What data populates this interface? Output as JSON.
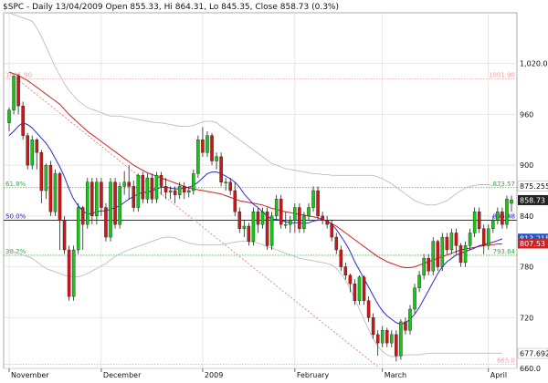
{
  "header": {
    "title": "$SPC - Daily 13/04/2009 Open 855.33, Hi 864.31, Lo 845.35, Close 858.73 (0.3%)"
  },
  "colors": {
    "up": "#16c716",
    "down": "#d11515",
    "wick": "#222222",
    "sma_short": "#2a2ad0",
    "sma_long": "#d42020",
    "bollinger": "#bdbdbd",
    "fib_green": "#2db82d",
    "fib_blue": "#2020c0",
    "fib_red": "#f2a0a0",
    "grid": "#dddddd",
    "axis_text": "#111111",
    "price_box": "#222222",
    "sma_box": "#2255cc",
    "sma_long_box": "#cc2222"
  },
  "chart_data": {
    "type": "candlestick",
    "title": "$SPC - Daily 13/04/2009 Open 855.33, Hi 864.31, Lo 845.35, Close 858.73 (0.3%)",
    "ylim": [
      660,
      1080
    ],
    "yticks": [
      1020,
      960,
      900,
      840,
      780,
      720,
      660
    ],
    "ytick_labels": [
      "1,020.0",
      "960",
      "900",
      "840",
      "780",
      "720",
      "660.0"
    ],
    "xticks": [
      {
        "i": 0,
        "label": "November"
      },
      {
        "i": 20,
        "label": "December"
      },
      {
        "i": 42,
        "label": "2009"
      },
      {
        "i": 62,
        "label": "February"
      },
      {
        "i": 81,
        "label": "March"
      },
      {
        "i": 104,
        "label": "April"
      }
    ],
    "fib_levels": [
      {
        "value": 1001.9,
        "label": "1001.90",
        "right_label": "1001.90",
        "color": "red"
      },
      {
        "value": 873.5,
        "label": "61.8%",
        "right_label": "873.57",
        "color": "green"
      },
      {
        "value": 835.0,
        "label": "50.0%",
        "right_label": "835.48",
        "color": "blue"
      },
      {
        "value": 793.6,
        "label": "38.2%",
        "right_label": "793.64",
        "color": "green"
      },
      {
        "value": 665.0,
        "label": "",
        "right_label": "665.0",
        "color": "red"
      }
    ],
    "right_boxes": [
      {
        "value": 875.255,
        "label": "875.255",
        "kind": "bollinger"
      },
      {
        "value": 858.73,
        "label": "858.73",
        "kind": "price"
      },
      {
        "value": 813.215,
        "label": "813.215",
        "kind": "sma_short"
      },
      {
        "value": 807.53,
        "label": "807.53",
        "kind": "sma_long"
      },
      {
        "value": 677.692,
        "label": "677.692",
        "kind": "bollinger"
      }
    ],
    "candles": [
      [
        950,
        965,
        940,
        968
      ],
      [
        965,
        1005,
        960,
        1006
      ],
      [
        1005,
        970,
        960,
        1008
      ],
      [
        970,
        935,
        930,
        975
      ],
      [
        935,
        900,
        895,
        938
      ],
      [
        900,
        930,
        895,
        935
      ],
      [
        930,
        915,
        895,
        932
      ],
      [
        915,
        870,
        855,
        918
      ],
      [
        870,
        900,
        860,
        902
      ],
      [
        900,
        845,
        840,
        905
      ],
      [
        845,
        890,
        840,
        895
      ],
      [
        890,
        835,
        800,
        892
      ],
      [
        835,
        800,
        795,
        840
      ],
      [
        800,
        745,
        740,
        805
      ],
      [
        745,
        800,
        740,
        805
      ],
      [
        800,
        850,
        795,
        855
      ],
      [
        850,
        830,
        800,
        852
      ],
      [
        830,
        880,
        825,
        885
      ],
      [
        880,
        840,
        830,
        885
      ],
      [
        840,
        880,
        830,
        885
      ],
      [
        880,
        850,
        840,
        885
      ],
      [
        850,
        815,
        810,
        855
      ],
      [
        815,
        880,
        810,
        885
      ],
      [
        880,
        830,
        825,
        885
      ],
      [
        830,
        875,
        825,
        880
      ],
      [
        875,
        880,
        865,
        893
      ],
      [
        880,
        875,
        860,
        900
      ],
      [
        875,
        850,
        845,
        882
      ],
      [
        850,
        888,
        845,
        890
      ],
      [
        888,
        860,
        855,
        892
      ],
      [
        860,
        885,
        855,
        890
      ],
      [
        885,
        860,
        855,
        890
      ],
      [
        860,
        888,
        855,
        892
      ],
      [
        888,
        875,
        865,
        892
      ],
      [
        875,
        868,
        860,
        885
      ],
      [
        868,
        870,
        860,
        875
      ],
      [
        870,
        865,
        855,
        875
      ],
      [
        865,
        875,
        860,
        880
      ],
      [
        875,
        868,
        860,
        880
      ],
      [
        868,
        870,
        862,
        875
      ],
      [
        870,
        890,
        865,
        895
      ],
      [
        890,
        930,
        885,
        935
      ],
      [
        930,
        915,
        910,
        945
      ],
      [
        915,
        935,
        910,
        940
      ],
      [
        935,
        905,
        900,
        938
      ],
      [
        905,
        910,
        895,
        915
      ],
      [
        910,
        880,
        875,
        915
      ],
      [
        880,
        880,
        870,
        885
      ],
      [
        880,
        870,
        865,
        885
      ],
      [
        870,
        845,
        840,
        880
      ],
      [
        845,
        825,
        820,
        850
      ],
      [
        825,
        828,
        815,
        835
      ],
      [
        828,
        810,
        805,
        832
      ],
      [
        810,
        845,
        805,
        850
      ],
      [
        845,
        830,
        820,
        850
      ],
      [
        830,
        845,
        825,
        850
      ],
      [
        845,
        805,
        800,
        850
      ],
      [
        805,
        840,
        800,
        845
      ],
      [
        840,
        860,
        835,
        865
      ],
      [
        860,
        830,
        825,
        865
      ],
      [
        830,
        830,
        825,
        845
      ],
      [
        830,
        835,
        820,
        840
      ],
      [
        835,
        850,
        820,
        855
      ],
      [
        850,
        825,
        820,
        855
      ],
      [
        825,
        840,
        820,
        845
      ],
      [
        840,
        850,
        835,
        855
      ],
      [
        850,
        870,
        845,
        875
      ],
      [
        870,
        840,
        835,
        875
      ],
      [
        840,
        835,
        830,
        845
      ],
      [
        835,
        830,
        825,
        840
      ],
      [
        830,
        815,
        810,
        835
      ],
      [
        815,
        800,
        795,
        820
      ],
      [
        800,
        780,
        775,
        805
      ],
      [
        780,
        770,
        765,
        785
      ],
      [
        770,
        760,
        750,
        772
      ],
      [
        760,
        740,
        735,
        765
      ],
      [
        740,
        768,
        735,
        770
      ],
      [
        768,
        740,
        735,
        770
      ],
      [
        740,
        720,
        715,
        745
      ],
      [
        720,
        700,
        695,
        725
      ],
      [
        700,
        690,
        675,
        705
      ],
      [
        690,
        705,
        685,
        710
      ],
      [
        705,
        690,
        685,
        708
      ],
      [
        690,
        700,
        685,
        705
      ],
      [
        700,
        675,
        668,
        705
      ],
      [
        675,
        715,
        670,
        718
      ],
      [
        715,
        705,
        700,
        720
      ],
      [
        705,
        730,
        700,
        735
      ],
      [
        730,
        755,
        725,
        760
      ],
      [
        755,
        770,
        750,
        775
      ],
      [
        770,
        790,
        765,
        795
      ],
      [
        790,
        775,
        770,
        795
      ],
      [
        775,
        810,
        770,
        815
      ],
      [
        810,
        780,
        775,
        812
      ],
      [
        780,
        815,
        775,
        820
      ],
      [
        815,
        800,
        795,
        820
      ],
      [
        800,
        820,
        795,
        825
      ],
      [
        820,
        805,
        795,
        825
      ],
      [
        805,
        785,
        780,
        808
      ],
      [
        785,
        805,
        780,
        810
      ],
      [
        805,
        820,
        800,
        825
      ],
      [
        820,
        845,
        815,
        850
      ],
      [
        845,
        825,
        820,
        850
      ],
      [
        825,
        805,
        795,
        830
      ],
      [
        805,
        825,
        800,
        830
      ],
      [
        825,
        835,
        820,
        840
      ],
      [
        835,
        845,
        830,
        850
      ],
      [
        845,
        830,
        825,
        850
      ],
      [
        830,
        860,
        825,
        864
      ],
      [
        855,
        859,
        845,
        864
      ]
    ],
    "sma_short": [
      935,
      940,
      946,
      950,
      948,
      944,
      938,
      932,
      926,
      918,
      908,
      898,
      886,
      872,
      860,
      852,
      846,
      842,
      843,
      845,
      846,
      846,
      848,
      850,
      852,
      856,
      860,
      863,
      866,
      868,
      868,
      870,
      872,
      874,
      874,
      873,
      872,
      872,
      873,
      874,
      876,
      880,
      885,
      890,
      892,
      892,
      890,
      887,
      884,
      880,
      874,
      866,
      860,
      854,
      850,
      845,
      840,
      836,
      836,
      835,
      833,
      832,
      832,
      832,
      831,
      832,
      834,
      835,
      836,
      834,
      830,
      824,
      816,
      808,
      798,
      786,
      776,
      766,
      756,
      746,
      736,
      728,
      722,
      718,
      714,
      712,
      714,
      718,
      724,
      732,
      742,
      752,
      762,
      772,
      780,
      786,
      790,
      794,
      796,
      798,
      800,
      802,
      805,
      806,
      808,
      809,
      811,
      813
    ],
    "sma_long": [
      1010,
      1008,
      1006,
      1003,
      1000,
      996,
      992,
      988,
      984,
      980,
      976,
      972,
      966,
      960,
      955,
      950,
      945,
      940,
      936,
      932,
      928,
      924,
      920,
      916,
      912,
      908,
      904,
      900,
      897,
      894,
      891,
      889,
      887,
      885,
      883,
      881,
      879,
      877,
      875,
      873,
      872,
      871,
      870,
      869,
      868,
      867,
      866,
      864,
      862,
      860,
      858,
      857,
      856,
      855,
      854,
      853,
      851,
      849,
      848,
      846,
      845,
      844,
      843,
      842,
      841,
      840,
      839,
      838,
      836,
      834,
      831,
      828,
      824,
      820,
      816,
      812,
      808,
      804,
      800,
      796,
      792,
      789,
      786,
      784,
      782,
      780,
      779,
      779,
      780,
      782,
      784,
      786,
      788,
      790,
      792,
      794,
      796,
      798,
      800,
      801,
      802,
      803,
      804,
      805,
      806,
      806,
      807,
      807
    ],
    "bb_upper": [
      1080,
      1078,
      1076,
      1074,
      1072,
      1070,
      1062,
      1052,
      1040,
      1028,
      1016,
      1006,
      996,
      988,
      982,
      976,
      972,
      968,
      966,
      964,
      962,
      960,
      958,
      958,
      958,
      957,
      956,
      955,
      954,
      953,
      952,
      951,
      950,
      950,
      949,
      948,
      947,
      946,
      946,
      946,
      947,
      949,
      951,
      952,
      952,
      950,
      946,
      942,
      938,
      934,
      930,
      926,
      922,
      918,
      914,
      910,
      906,
      902,
      900,
      898,
      896,
      895,
      894,
      893,
      892,
      891,
      890,
      890,
      889,
      889,
      888,
      888,
      888,
      888,
      888,
      888,
      888,
      888,
      888,
      888,
      886,
      884,
      881,
      878,
      874,
      870,
      866,
      862,
      858,
      856,
      854,
      853,
      853,
      854,
      856,
      858,
      862,
      866,
      870,
      873,
      875,
      876,
      877,
      877,
      877,
      876,
      876,
      875
    ],
    "bb_lower": [
      800,
      798,
      796,
      794,
      792,
      790,
      786,
      782,
      778,
      776,
      774,
      772,
      770,
      769,
      768,
      768,
      770,
      772,
      775,
      778,
      781,
      784,
      788,
      792,
      795,
      798,
      800,
      802,
      804,
      806,
      808,
      810,
      812,
      814,
      815,
      815,
      814,
      812,
      810,
      808,
      807,
      806,
      806,
      806,
      806,
      806,
      806,
      807,
      808,
      809,
      810,
      810,
      810,
      809,
      808,
      806,
      804,
      802,
      800,
      798,
      796,
      794,
      792,
      790,
      789,
      788,
      787,
      786,
      785,
      784,
      782,
      778,
      772,
      764,
      754,
      742,
      730,
      718,
      706,
      695,
      686,
      680,
      676,
      674,
      674,
      675,
      676,
      676,
      676,
      676,
      677,
      678,
      678,
      678,
      678,
      678,
      678,
      678,
      678,
      678,
      678,
      678,
      678,
      678,
      678,
      678,
      678,
      678
    ]
  }
}
